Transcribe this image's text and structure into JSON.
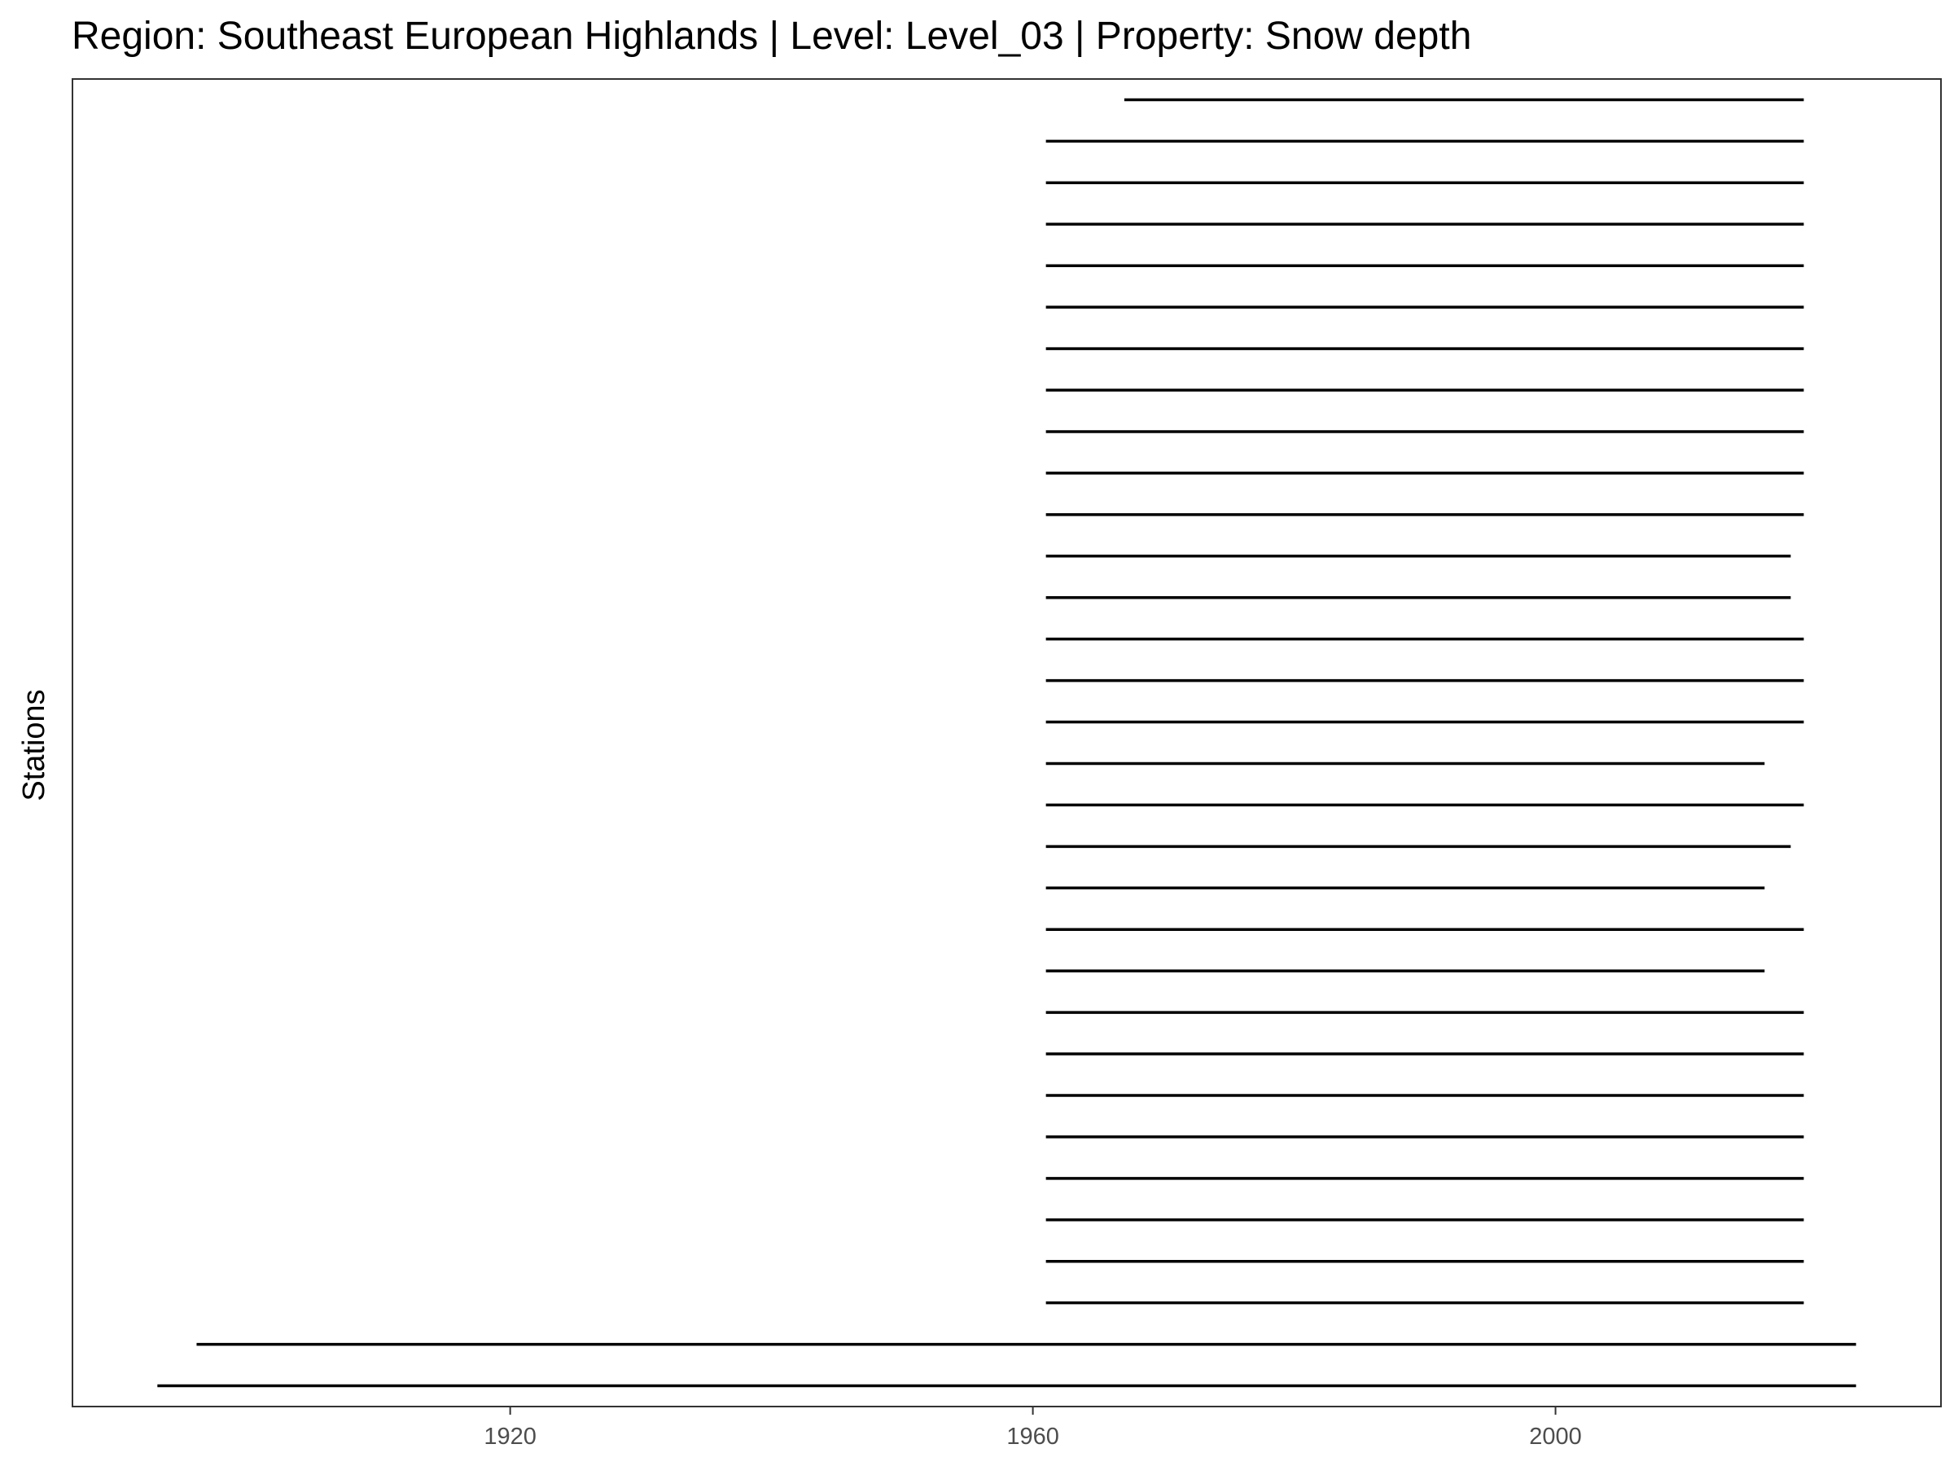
{
  "chart_data": {
    "type": "segment",
    "title": "Region: Southeast European Highlands | Level: Level_03 | Property: Snow depth",
    "xlabel": "",
    "ylabel": "Stations",
    "xlim": [
      1886.5,
      2029.5
    ],
    "x_ticks": [
      1920,
      1960,
      2000
    ],
    "grid": false,
    "legend": "none",
    "colors": {
      "segment": "#000000",
      "border": "#333333",
      "tick_label": "#4d4d4d"
    },
    "segments": [
      {
        "start": 1967,
        "end": 2019
      },
      {
        "start": 1961,
        "end": 2019
      },
      {
        "start": 1961,
        "end": 2019
      },
      {
        "start": 1961,
        "end": 2019
      },
      {
        "start": 1961,
        "end": 2019
      },
      {
        "start": 1961,
        "end": 2019
      },
      {
        "start": 1961,
        "end": 2019
      },
      {
        "start": 1961,
        "end": 2019
      },
      {
        "start": 1961,
        "end": 2019
      },
      {
        "start": 1961,
        "end": 2019
      },
      {
        "start": 1961,
        "end": 2019
      },
      {
        "start": 1961,
        "end": 2018
      },
      {
        "start": 1961,
        "end": 2018
      },
      {
        "start": 1961,
        "end": 2019
      },
      {
        "start": 1961,
        "end": 2019
      },
      {
        "start": 1961,
        "end": 2019
      },
      {
        "start": 1961,
        "end": 2016
      },
      {
        "start": 1961,
        "end": 2019
      },
      {
        "start": 1961,
        "end": 2018
      },
      {
        "start": 1961,
        "end": 2016
      },
      {
        "start": 1961,
        "end": 2019
      },
      {
        "start": 1961,
        "end": 2016
      },
      {
        "start": 1961,
        "end": 2019
      },
      {
        "start": 1961,
        "end": 2019
      },
      {
        "start": 1961,
        "end": 2019
      },
      {
        "start": 1961,
        "end": 2019
      },
      {
        "start": 1961,
        "end": 2019
      },
      {
        "start": 1961,
        "end": 2019
      },
      {
        "start": 1961,
        "end": 2019
      },
      {
        "start": 1961,
        "end": 2019
      },
      {
        "start": 1896,
        "end": 2023
      },
      {
        "start": 1893,
        "end": 2023
      }
    ]
  }
}
